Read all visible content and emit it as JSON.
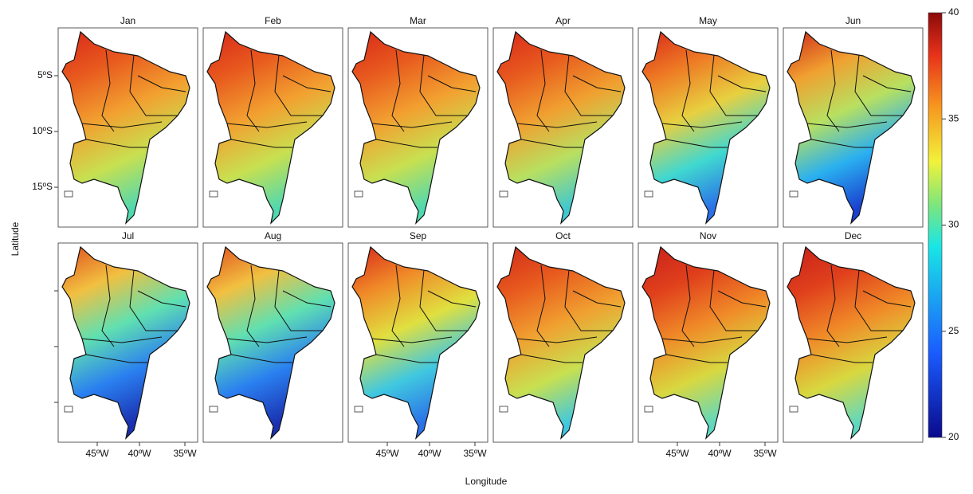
{
  "panels": [
    {
      "title": "Jan"
    },
    {
      "title": "Feb"
    },
    {
      "title": "Mar"
    },
    {
      "title": "Apr"
    },
    {
      "title": "May"
    },
    {
      "title": "Jun"
    },
    {
      "title": "Jul"
    },
    {
      "title": "Aug"
    },
    {
      "title": "Sep"
    },
    {
      "title": "Oct"
    },
    {
      "title": "Nov"
    },
    {
      "title": "Dec"
    }
  ],
  "x_label": "Longitude",
  "y_label": "Latitude",
  "lat_ticks": [
    "5ºS",
    "10ºS",
    "15ºS"
  ],
  "lon_ticks": [
    "45ºW",
    "40ºW",
    "35ºW"
  ],
  "colorbar": {
    "lim": [
      20,
      40
    ],
    "ticks": [
      20,
      25,
      30,
      35,
      40
    ]
  }
}
